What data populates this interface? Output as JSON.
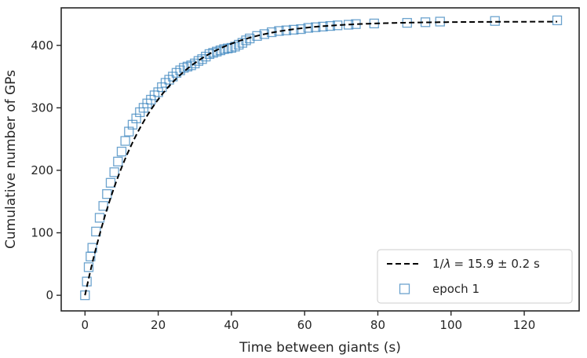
{
  "chart_data": {
    "type": "scatter",
    "title": "",
    "xlabel": "Time between giants (s)",
    "ylabel": "Cumulative number of GPs",
    "xlim": [
      -6.5,
      135
    ],
    "ylim": [
      -25,
      460
    ],
    "xticks": [
      0,
      20,
      40,
      60,
      80,
      100,
      120
    ],
    "yticks": [
      0,
      100,
      200,
      300,
      400
    ],
    "grid": false,
    "legend_position": "bottom-right",
    "series": [
      {
        "name": "epoch 1",
        "kind": "markers",
        "marker": "open-square",
        "color": "#3b84be",
        "x": [
          0,
          0.5,
          1,
          1.5,
          2,
          3,
          4,
          5,
          6,
          7,
          8,
          9,
          10,
          11,
          12,
          13,
          14,
          15,
          16,
          17,
          18,
          19,
          20,
          21,
          22,
          23,
          24,
          25,
          26,
          27,
          28,
          29,
          30,
          31,
          32,
          33,
          34,
          35,
          36,
          37,
          38,
          39,
          40,
          41,
          42,
          43,
          44,
          45,
          47,
          49,
          51,
          53,
          55,
          57,
          59,
          61,
          63,
          65,
          67,
          69,
          72,
          74,
          79,
          88,
          93,
          97,
          112,
          129
        ],
        "y": [
          0,
          22,
          45,
          62,
          76,
          102,
          124,
          143,
          162,
          180,
          197,
          214,
          230,
          247,
          262,
          273,
          283,
          293,
          300,
          307,
          313,
          320,
          325,
          333,
          340,
          345,
          350,
          356,
          360,
          364,
          366,
          368,
          371,
          375,
          378,
          382,
          386,
          388,
          390,
          392,
          394,
          395,
          396,
          398,
          401,
          404,
          408,
          411,
          415,
          418,
          421,
          423,
          424,
          425,
          426,
          428,
          429,
          430,
          431,
          432,
          433,
          434,
          435,
          436,
          437,
          438,
          439,
          440
        ]
      },
      {
        "name": "1/λ = 15.9 ± 0.2 s",
        "kind": "fit-line",
        "style": "dashed",
        "color": "#000000",
        "lambda_inverse": 15.9,
        "lambda_inverse_err": 0.2,
        "amplitude": 438,
        "x_range": [
          0,
          129
        ]
      }
    ],
    "legend": {
      "fit_label_prefix": "1/",
      "fit_label_symbol": "λ",
      "fit_label_value": "= 15.9 ± 0.2 s",
      "marker_label": "epoch 1"
    }
  }
}
